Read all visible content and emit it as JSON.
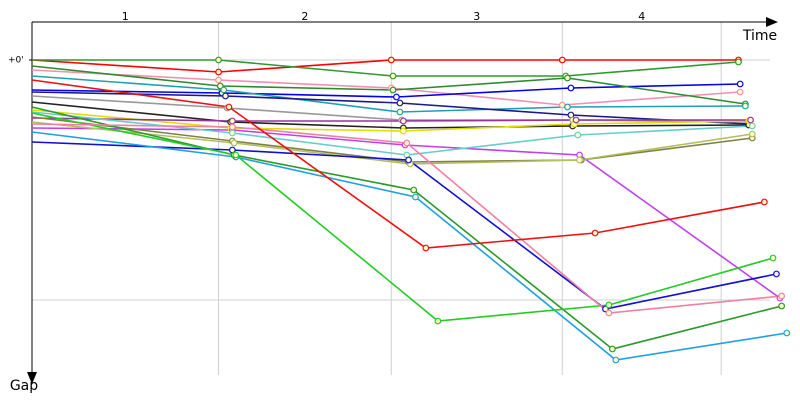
{
  "chart_data": {
    "type": "line",
    "x_label": "Time",
    "y_label": "Gap",
    "lap_labels": [
      "1",
      "2",
      "3",
      "4"
    ],
    "xlim": [
      0,
      4.4
    ],
    "ylim": [
      -3.8,
      31.5
    ],
    "xgrid": [
      1.08,
      2.08,
      3.07,
      3.99
    ],
    "yticks": [
      {
        "value": 0,
        "label": "+0'"
      }
    ],
    "ygrid": [
      0,
      24
    ],
    "markers": true,
    "series": [
      {
        "color": "#ff0000",
        "x": [
          0,
          1.08,
          2.08,
          3.07,
          4.09
        ],
        "values": [
          0,
          1.2,
          0,
          0,
          0
        ]
      },
      {
        "color": "#2e9a2e",
        "x": [
          0,
          1.08,
          2.09,
          3.09,
          4.09
        ],
        "values": [
          0,
          0,
          1.6,
          1.6,
          0.2
        ]
      },
      {
        "color": "#f48fb1",
        "x": [
          0,
          1.08,
          2.08,
          3.07,
          4.1
        ],
        "values": [
          1.0,
          2.0,
          2.8,
          4.5,
          3.2
        ]
      },
      {
        "color": "#0000ee",
        "x": [
          0,
          1.1,
          2.11,
          3.12,
          4.1
        ],
        "values": [
          3.0,
          3.3,
          3.7,
          2.8,
          2.4
        ]
      },
      {
        "color": "#2e8b2e",
        "x": [
          0,
          1.09,
          2.09,
          3.1,
          4.13
        ],
        "values": [
          0.6,
          2.6,
          3.0,
          1.8,
          4.4
        ]
      },
      {
        "color": "#1fa0b0",
        "x": [
          0,
          1.11,
          2.13,
          3.1,
          4.13
        ],
        "values": [
          1.6,
          3.0,
          5.2,
          4.7,
          4.6
        ]
      },
      {
        "color": "#1a1a8c",
        "x": [
          0,
          1.12,
          2.13,
          3.12,
          4.15
        ],
        "values": [
          3.2,
          3.6,
          4.3,
          5.5,
          6.4
        ]
      },
      {
        "color": "#999999",
        "x": [
          0,
          1.13,
          2.14,
          3.13,
          4.15
        ],
        "values": [
          3.6,
          4.8,
          6.0,
          6.0,
          6.2
        ]
      },
      {
        "color": "#222222",
        "x": [
          0,
          1.15,
          2.15,
          3.13,
          4.15
        ],
        "values": [
          4.2,
          6.2,
          6.8,
          6.6,
          6.5
        ]
      },
      {
        "color": "#dddd00",
        "x": [
          0,
          1.15,
          2.15,
          3.14,
          4.15
        ],
        "values": [
          5.0,
          6.8,
          7.1,
          6.4,
          6.1
        ]
      },
      {
        "color": "#993399",
        "x": [
          0,
          1.16,
          2.15,
          3.15,
          4.16
        ],
        "values": [
          5.8,
          6.1,
          6.1,
          6.0,
          6.0
        ]
      },
      {
        "color": "#c040f0",
        "x": [
          0,
          1.16,
          2.16,
          3.17,
          4.33
        ],
        "values": [
          6.8,
          7.0,
          8.5,
          9.5,
          23.8
        ]
      },
      {
        "color": "#66cccc",
        "x": [
          0,
          1.16,
          2.17,
          3.16,
          4.17
        ],
        "values": [
          5.2,
          7.3,
          9.5,
          7.5,
          6.6
        ]
      },
      {
        "color": "#808040",
        "x": [
          0,
          1.16,
          2.18,
          3.18,
          4.17
        ],
        "values": [
          5.7,
          8.1,
          10.2,
          10.0,
          7.8
        ]
      },
      {
        "color": "#b0c060",
        "x": [
          0,
          1.17,
          2.19,
          3.17,
          4.17
        ],
        "values": [
          6.2,
          8.3,
          10.4,
          10.0,
          7.4
        ]
      },
      {
        "color": "#1010d0",
        "x": [
          0,
          1.16,
          2.18,
          3.32,
          4.31
        ],
        "values": [
          8.2,
          9.0,
          10.0,
          24.9,
          21.4
        ]
      },
      {
        "color": "#20a0e0",
        "x": [
          0,
          1.18,
          2.22,
          3.38,
          4.37
        ],
        "values": [
          7.2,
          9.7,
          13.7,
          30.0,
          27.3
        ]
      },
      {
        "color": "#2a9a2a",
        "x": [
          0,
          1.17,
          2.21,
          3.36,
          4.34
        ],
        "values": [
          4.7,
          9.5,
          13.0,
          28.9,
          24.6
        ]
      },
      {
        "color": "#22cc22",
        "x": [
          0,
          1.18,
          2.35,
          3.34,
          4.29
        ],
        "values": [
          5.3,
          9.5,
          26.1,
          24.5,
          19.8
        ]
      },
      {
        "color": "#f080a0",
        "x": [
          0,
          1.16,
          2.17,
          3.34,
          4.34
        ],
        "values": [
          6.4,
          6.7,
          8.3,
          25.3,
          23.6
        ]
      },
      {
        "color": "#ee1111",
        "x": [
          0,
          1.14,
          2.28,
          3.26,
          4.24
        ],
        "values": [
          2.0,
          4.7,
          18.8,
          17.3,
          14.2
        ]
      }
    ]
  }
}
